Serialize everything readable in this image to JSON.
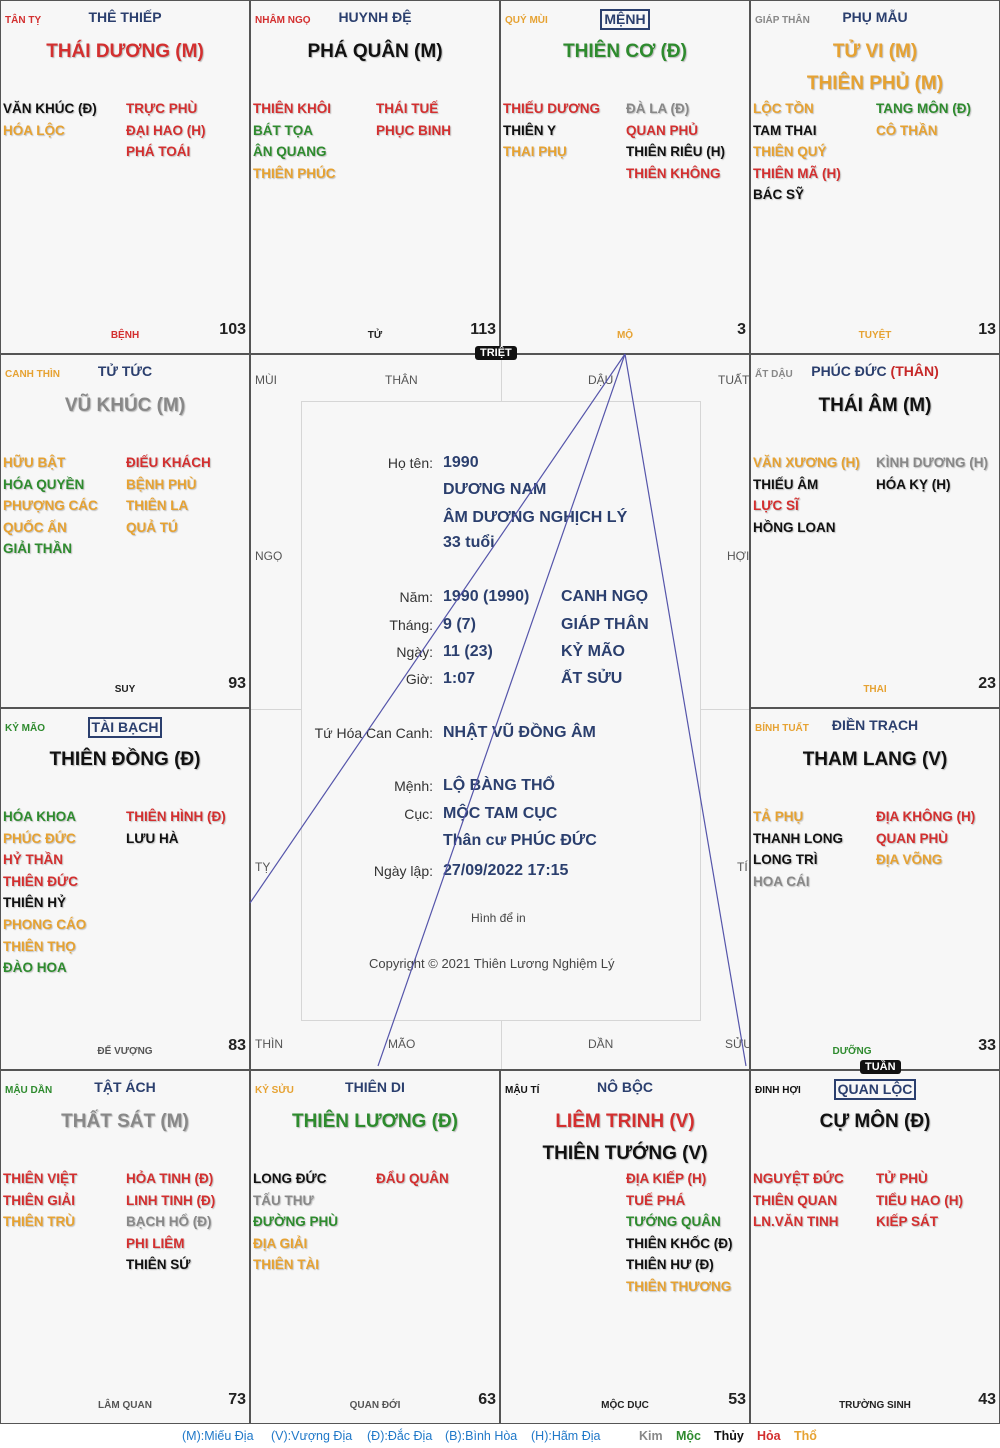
{
  "colors": {
    "kim": "#888888",
    "moc": "#2e8b2e",
    "thuy": "#111111",
    "hoa": "#d32f2f",
    "tho": "#e6a232",
    "navy": "#2b3f6e"
  },
  "cells": {
    "ty": {
      "can": "TÂN TỴ",
      "palace": "THÊ THIẾP",
      "main1": "THÁI DƯƠNG (M)",
      "stars_left": [
        "VĂN KHÚC (Đ)",
        "HÓA LỘC"
      ],
      "stars_right": [
        "TRỰC PHÙ",
        "ĐẠI HAO (H)",
        "PHÁ TOÁI"
      ],
      "truong": "BỆNH",
      "num": "103"
    },
    "ngo": {
      "can": "NHÂM NGỌ",
      "palace": "HUYNH ĐỆ",
      "main1": "PHÁ QUÂN (M)",
      "stars_left": [
        "THIÊN KHÔI",
        "BÁT TỌA",
        "ÂN QUANG",
        "THIÊN PHÚC"
      ],
      "stars_right": [
        "THÁI TUẾ",
        "PHỤC BINH"
      ],
      "truong": "TỬ",
      "num": "113"
    },
    "mui": {
      "can": "QUÝ MÙI",
      "palace": "MỆNH",
      "main1": "THIÊN CƠ (Đ)",
      "stars_left": [
        "THIẾU DƯƠNG",
        "THIÊN Y",
        "THAI PHỤ"
      ],
      "stars_right": [
        "ĐÀ LA (Đ)",
        "QUAN PHỦ",
        "THIÊN RIÊU (H)",
        "THIÊN KHÔNG"
      ],
      "truong": "MỘ",
      "num": "3"
    },
    "than": {
      "can": "GIÁP THÂN",
      "palace": "PHỤ MẪU",
      "main1": "TỬ VI (M)",
      "main2": "THIÊN PHỦ (M)",
      "stars_left": [
        "LỘC TỒN",
        "TAM THAI",
        "THIÊN QUÝ",
        "THIÊN MÃ (H)",
        "BÁC SỸ"
      ],
      "stars_right": [
        "TANG MÔN (Đ)",
        "CÔ THẦN"
      ],
      "truong": "TUYỆT",
      "num": "13"
    },
    "thin": {
      "can": "CANH THÌN",
      "palace": "TỬ TỨC",
      "main1": "VŨ KHÚC (M)",
      "stars_left": [
        "HỮU BẬT",
        "HÓA QUYỀN",
        "PHƯỢNG CÁC",
        "QUỐC ẤN",
        "GIẢI THẦN"
      ],
      "stars_right": [
        "ĐIẾU KHÁCH",
        "BỆNH PHÙ",
        "THIÊN LA",
        "QUẢ TÚ"
      ],
      "truong": "SUY",
      "num": "93"
    },
    "dau": {
      "can": "ẤT DẬU",
      "palace": "PHÚC ĐỨC",
      "palace_than": "(THÂN)",
      "main1": "THÁI ÂM (M)",
      "stars_left": [
        "VĂN XƯƠNG (H)",
        "THIẾU ÂM",
        "LỰC SĨ",
        "HỒNG LOAN"
      ],
      "stars_right": [
        "KÌNH DƯƠNG (H)",
        "HÓA KỴ (H)"
      ],
      "truong": "THAI",
      "num": "23"
    },
    "mao": {
      "can": "KỶ MÃO",
      "palace": "TÀI BẠCH",
      "main1": "THIÊN ĐỒNG (Đ)",
      "stars_left": [
        "HÓA KHOA",
        "PHÚC ĐỨC",
        "HỶ THẦN",
        "THIÊN ĐỨC",
        "THIÊN HỶ",
        "PHONG CÁO",
        "THIÊN THỌ",
        "ĐÀO HOA"
      ],
      "stars_right": [
        "THIÊN HÌNH (Đ)",
        "LƯU HÀ"
      ],
      "truong": "ĐẾ VƯỢNG",
      "num": "83"
    },
    "tuat": {
      "can": "BÍNH TUẤT",
      "palace": "ĐIỀN TRẠCH",
      "main1": "THAM LANG (V)",
      "stars_left": [
        "TẢ PHỤ",
        "THANH LONG",
        "LONG TRÌ",
        "HOA CÁI"
      ],
      "stars_right": [
        "ĐỊA KHÔNG (H)",
        "QUAN PHÙ",
        "ĐỊA VÕNG"
      ],
      "truong": "DƯỠNG",
      "num": "33"
    },
    "dan": {
      "can": "MẬU DẦN",
      "palace": "TẬT ÁCH",
      "main1": "THẤT SÁT (M)",
      "stars_left": [
        "THIÊN VIỆT",
        "THIÊN GIẢI",
        "THIÊN TRÙ"
      ],
      "stars_right": [
        "HỎA TINH (Đ)",
        "LINH TINH (Đ)",
        "BẠCH HỔ (Đ)",
        "PHI LIÊM",
        "THIÊN SỨ"
      ],
      "truong": "LÂM QUAN",
      "num": "73"
    },
    "suu": {
      "can": "KỶ SỬU",
      "palace": "THIÊN DI",
      "main1": "THIÊN LƯƠNG (Đ)",
      "stars_left": [
        "LONG ĐỨC",
        "TẤU THƯ",
        "ĐƯỜNG PHÙ",
        "ĐỊA GIẢI",
        "THIÊN TÀI"
      ],
      "stars_right": [
        "ĐẨU QUÂN"
      ],
      "truong": "QUAN ĐỚI",
      "num": "63"
    },
    "ti": {
      "can": "MẬU TÍ",
      "palace": "NÔ BỘC",
      "main1": "LIÊM TRINH (V)",
      "main2": "THIÊN TƯỚNG (V)",
      "stars_left": [],
      "stars_right": [
        "ĐỊA KIẾP (H)",
        "TUẾ PHÁ",
        "TƯỚNG QUÂN",
        "THIÊN KHỐC (Đ)",
        "THIÊN HƯ (Đ)",
        "THIÊN THƯƠNG"
      ],
      "truong": "MỘC DỤC",
      "num": "53"
    },
    "hoi": {
      "can": "ĐINH HỢI",
      "palace": "QUAN LỘC",
      "main1": "CỰ MÔN (Đ)",
      "stars_left": [
        "NGUYỆT ĐỨC",
        "THIÊN QUAN",
        "LN.VĂN TINH"
      ],
      "stars_right": [
        "TỬ PHÙ",
        "TIỂU HAO (H)",
        "KIẾP SÁT"
      ],
      "truong": "TRƯỜNG SINH",
      "num": "43"
    }
  },
  "tags": {
    "triet": "TRIỆT",
    "tuan": "TUẦN"
  },
  "border": {
    "top": [
      "MÙI",
      "THÂN",
      "DẬU",
      "TUẤT"
    ],
    "bottom": [
      "THÌN",
      "MÃO",
      "DẦN",
      "SỬU"
    ],
    "left": [
      "NGỌ",
      "TỴ"
    ],
    "right": [
      "HỢI",
      "TÍ"
    ]
  },
  "info": {
    "ho_ten_label": "Họ tên:",
    "ho_ten": "1990",
    "gender": "DƯƠNG NAM",
    "am_duong": "ÂM DƯƠNG NGHỊCH LÝ",
    "tuoi": "33 tuổi",
    "nam_label": "Năm:",
    "nam": "1990 (1990)",
    "nam_cc": "CANH NGỌ",
    "thang_label": "Tháng:",
    "thang": "9 (7)",
    "thang_cc": "GIÁP THÂN",
    "ngay_label": "Ngày:",
    "ngay": "11 (23)",
    "ngay_cc": "KỶ MÃO",
    "gio_label": "Giờ:",
    "gio": "1:07",
    "gio_cc": "ẤT SỬU",
    "tu_hoa_label": "Tứ Hóa Can Canh:",
    "tu_hoa": "NHẬT VŨ ĐỒNG ÂM",
    "menh_label": "Mệnh:",
    "menh": "LỘ BÀNG THỔ",
    "cuc_label": "Cục:",
    "cuc": "MỘC TAM CỤC",
    "than_cu": "Thân cư PHÚC ĐỨC",
    "ngay_lap_label": "Ngày lập:",
    "ngay_lap": "27/09/2022 17:15",
    "hinh": "Hình để in",
    "copyright": "Copyright © 2021 Thiên Lương Nghiệm Lý"
  },
  "legend": {
    "m": "(M):Miếu Địa",
    "v": "(V):Vượng Địa",
    "d": "(Đ):Đắc Địa",
    "b": "(B):Bình Hòa",
    "h": "(H):Hãm Địa",
    "kim": "Kim",
    "moc": "Mộc",
    "thuy": "Thủy",
    "hoa": "Hỏa",
    "tho": "Thổ"
  }
}
